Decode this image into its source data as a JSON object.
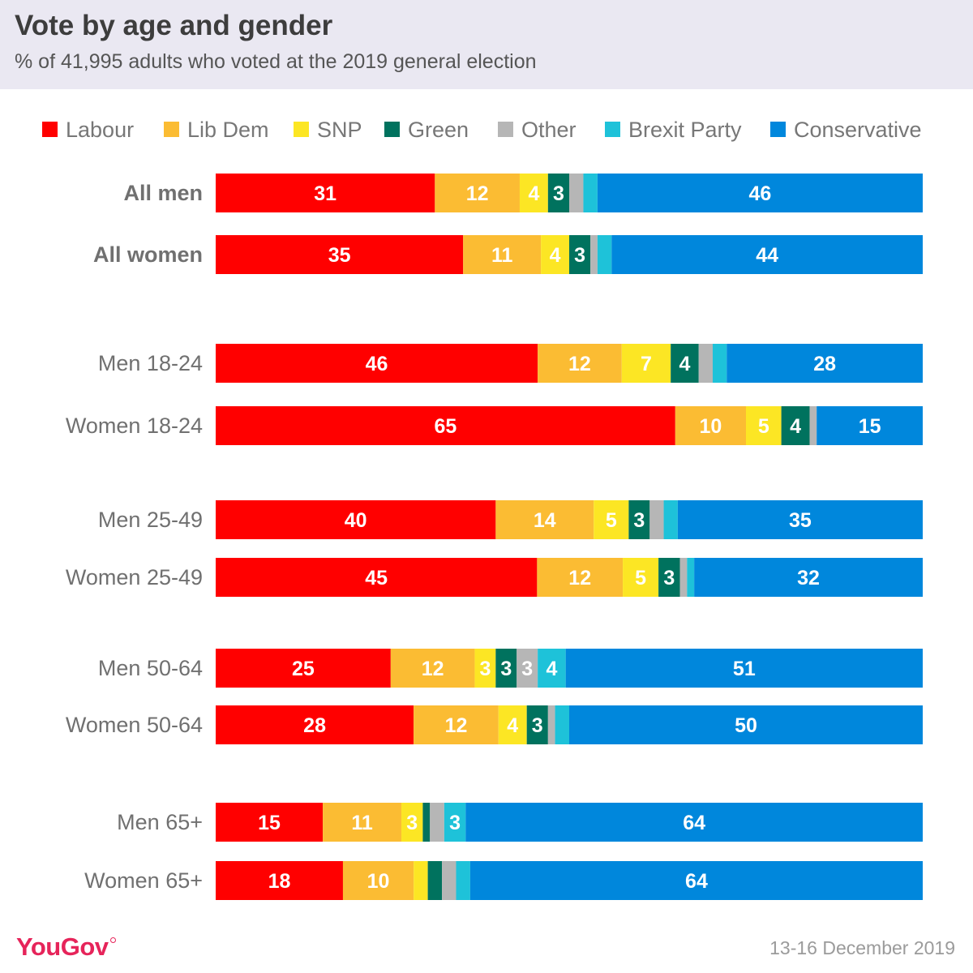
{
  "title": "Vote by age and gender",
  "subtitle": "% of 41,995 adults who voted at the 2019 general election",
  "brand": "YouGov",
  "date": "13-16 December 2019",
  "chart_data": {
    "type": "bar",
    "orientation": "horizontal",
    "stacked": true,
    "grid": false,
    "legend_placement": "top",
    "categories": [
      "All men",
      "All women",
      "Men 18-24",
      "Women 18-24",
      "Men 25-49",
      "Women 25-49",
      "Men 50-64",
      "Women 50-64",
      "Men 65+",
      "Women 65+"
    ],
    "bold_categories": [
      "All men",
      "All women"
    ],
    "series": [
      {
        "name": "Labour",
        "color": "#ff0000",
        "label_color": "#ffffff",
        "values": [
          31,
          35,
          46,
          65,
          40,
          45,
          25,
          28,
          15,
          18
        ],
        "labels": [
          "31",
          "35",
          "46",
          "65",
          "40",
          "45",
          "25",
          "28",
          "15",
          "18"
        ]
      },
      {
        "name": "Lib Dem",
        "color": "#fbbc33",
        "label_color": "#ffffff",
        "values": [
          12,
          11,
          12,
          10,
          14,
          12,
          12,
          12,
          11,
          10
        ],
        "labels": [
          "12",
          "11",
          "12",
          "10",
          "14",
          "12",
          "12",
          "12",
          "11",
          "10"
        ]
      },
      {
        "name": "SNP",
        "color": "#fce624",
        "label_color": "#ffffff",
        "values": [
          4,
          4,
          7,
          5,
          5,
          5,
          3,
          4,
          3,
          2
        ],
        "labels": [
          "4",
          "4",
          "7",
          "5",
          "5",
          "5",
          "3",
          "4",
          "3",
          ""
        ]
      },
      {
        "name": "Green",
        "color": "#00725e",
        "label_color": "#ffffff",
        "values": [
          3,
          3,
          4,
          4,
          3,
          3,
          3,
          3,
          1,
          2
        ],
        "labels": [
          "3",
          "3",
          "4",
          "4",
          "3",
          "3",
          "3",
          "3",
          "",
          ""
        ]
      },
      {
        "name": "Other",
        "color": "#b6b6b6",
        "label_color": "#ffffff",
        "values": [
          2,
          1,
          2,
          1,
          2,
          1,
          3,
          1,
          2,
          2
        ],
        "labels": [
          "",
          "",
          "",
          "",
          "",
          "",
          "3",
          "",
          "",
          ""
        ]
      },
      {
        "name": "Brexit Party",
        "color": "#1ec2d9",
        "label_color": "#ffffff",
        "values": [
          2,
          2,
          2,
          0,
          2,
          1,
          4,
          2,
          3,
          2
        ],
        "labels": [
          "",
          "",
          "",
          "",
          "",
          "",
          "4",
          "",
          "3",
          ""
        ]
      },
      {
        "name": "Conservative",
        "color": "#0087dc",
        "label_color": "#ffffff",
        "values": [
          46,
          44,
          28,
          15,
          35,
          32,
          51,
          50,
          64,
          64
        ],
        "labels": [
          "46",
          "44",
          "28",
          "15",
          "35",
          "32",
          "51",
          "50",
          "64",
          "64"
        ]
      }
    ]
  }
}
